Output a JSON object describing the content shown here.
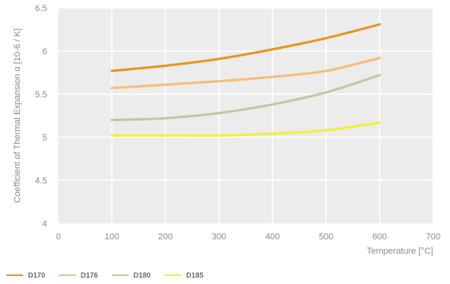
{
  "chart_data": {
    "type": "line",
    "xlabel": "Temperature [°C]",
    "ylabel": "Coefficient of Thermal Expansion α [10-6 / K]",
    "xlim": [
      0,
      700
    ],
    "ylim": [
      4,
      6.5
    ],
    "x_ticks": [
      0,
      100,
      200,
      300,
      400,
      500,
      600,
      700
    ],
    "y_ticks": [
      4,
      4.5,
      5,
      5.5,
      6,
      6.5
    ],
    "y_tick_labels": [
      "4",
      "4.5",
      "5",
      "5.5",
      "6",
      "6.5"
    ],
    "grid": true,
    "legend_position": "bottom-left",
    "series": [
      {
        "name": "D170",
        "color": "#e8951f",
        "x": [
          100,
          200,
          300,
          400,
          500,
          600
        ],
        "y": [
          5.77,
          5.83,
          5.91,
          6.02,
          6.15,
          6.31
        ]
      },
      {
        "name": "D176",
        "color": "#f5bd78",
        "x": [
          100,
          200,
          300,
          400,
          500,
          600
        ],
        "y": [
          5.57,
          5.61,
          5.65,
          5.7,
          5.77,
          5.92
        ]
      },
      {
        "name": "D180",
        "color": "#c6c6a0",
        "x": [
          100,
          200,
          300,
          400,
          500,
          600
        ],
        "y": [
          5.2,
          5.22,
          5.28,
          5.38,
          5.52,
          5.72
        ]
      },
      {
        "name": "D185",
        "color": "#eef23a",
        "x": [
          100,
          200,
          300,
          400,
          500,
          600
        ],
        "y": [
          5.02,
          5.02,
          5.02,
          5.04,
          5.08,
          5.17
        ]
      }
    ]
  }
}
